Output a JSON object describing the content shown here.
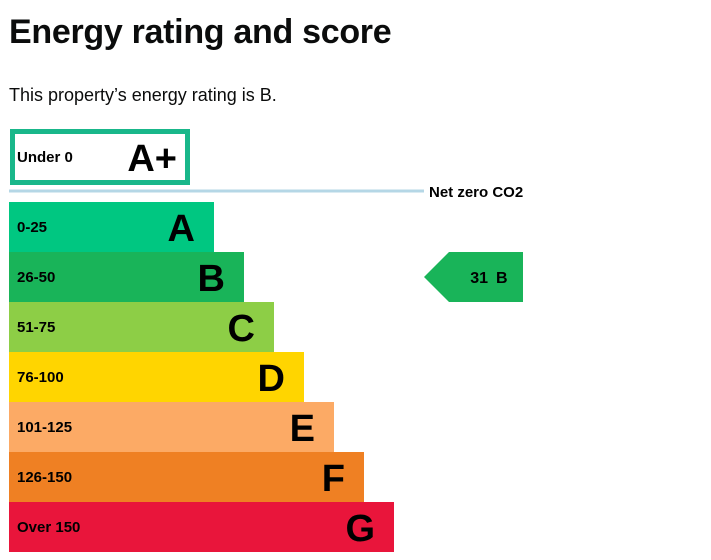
{
  "page": {
    "title": "Energy rating and score",
    "sentence_prefix": "This property’s energy rating is ",
    "sentence_rating": "B",
    "sentence_suffix": "."
  },
  "chart_data": {
    "type": "bar",
    "categories": [
      "A+",
      "A",
      "B",
      "C",
      "D",
      "E",
      "F",
      "G"
    ],
    "score_ranges": [
      "Under 0",
      "0-25",
      "26-50",
      "51-75",
      "76-100",
      "101-125",
      "126-150",
      "Over 150"
    ],
    "band_colors": [
      "#ffffff",
      "#00c781",
      "#19b459",
      "#8dce46",
      "#ffd500",
      "#fcaa65",
      "#ef8023",
      "#e9153b"
    ],
    "highlight_box_color": "#19b78a",
    "net_zero_line": {
      "label": "Net zero CO2",
      "color": "#b5d7e6"
    },
    "current_rating": {
      "score": "31",
      "letter": "B",
      "color": "#19b459"
    }
  }
}
